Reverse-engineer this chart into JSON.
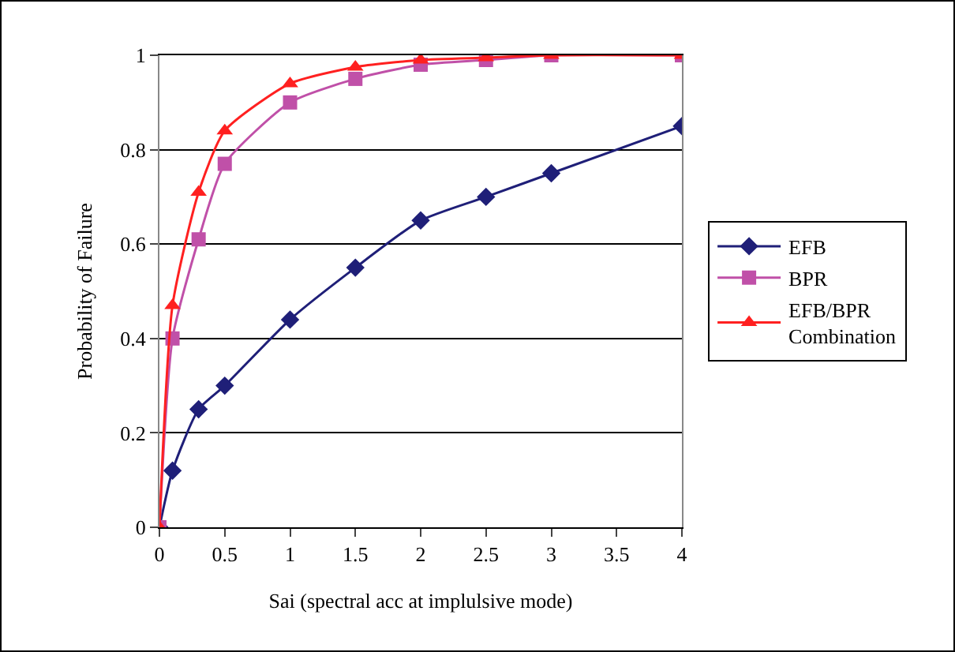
{
  "chart_data": {
    "type": "line",
    "xlabel": "Sai (spectral acc at implulsive mode)",
    "ylabel": "Probability of Failure",
    "x": [
      0,
      0.1,
      0.3,
      0.5,
      1,
      1.5,
      2,
      2.5,
      3,
      4
    ],
    "series": [
      {
        "name": "EFB",
        "color": "#1f1f78",
        "marker": "diamond",
        "values": [
          0,
          0.12,
          0.25,
          0.3,
          0.44,
          0.55,
          0.65,
          0.7,
          0.75,
          0.85
        ]
      },
      {
        "name": "BPR",
        "color": "#c050a8",
        "marker": "square",
        "values": [
          0,
          0.4,
          0.61,
          0.77,
          0.9,
          0.95,
          0.98,
          0.99,
          1,
          1
        ]
      },
      {
        "name": "EFB/BPR Combination",
        "color": "#ff2020",
        "marker": "triangle",
        "values": [
          0,
          0.47,
          0.71,
          0.84,
          0.94,
          0.975,
          0.99,
          0.995,
          1,
          1
        ]
      }
    ],
    "xlim": [
      0,
      4
    ],
    "xticks": [
      0,
      0.5,
      1,
      1.5,
      2,
      2.5,
      3,
      3.5,
      4
    ],
    "ylim": [
      0,
      1
    ],
    "yticks": [
      0,
      0.2,
      0.4,
      0.6,
      0.8,
      1
    ],
    "grid": "y",
    "legend": "right",
    "line_style": "solid"
  }
}
